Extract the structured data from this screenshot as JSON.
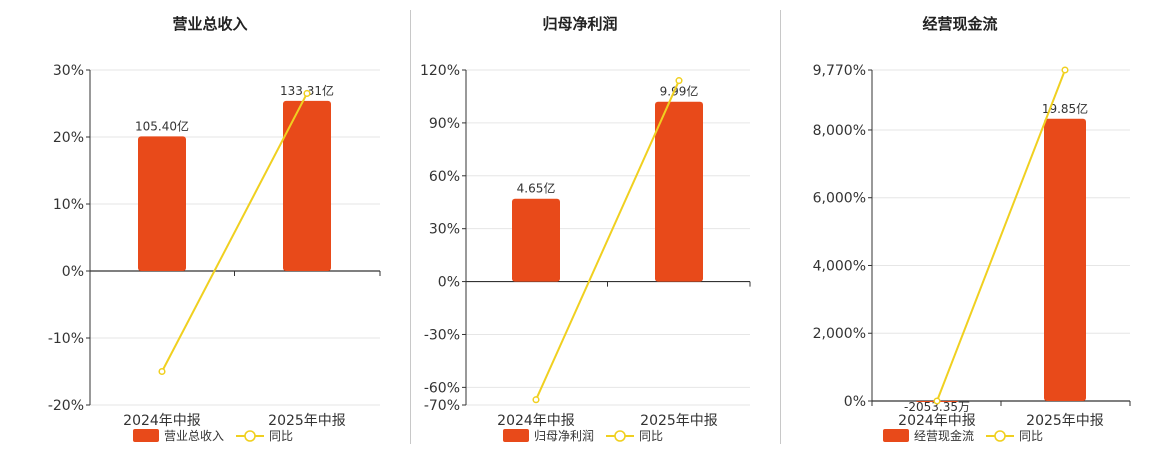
{
  "colors": {
    "bar": "#e84a1a",
    "line": "#f0d020",
    "axis": "#333333",
    "grid": "#e6e6e6",
    "text": "#333333"
  },
  "chart_data": [
    {
      "type": "bar",
      "title": "营业总收入",
      "categories": [
        "2024年中报",
        "2025年中报"
      ],
      "series": [
        {
          "name": "营业总收入",
          "type": "bar",
          "values": [
            20.1,
            25.4
          ],
          "labels": [
            "105.40亿",
            "133.31亿"
          ]
        },
        {
          "name": "同比",
          "type": "line",
          "values": [
            -15.0,
            26.5
          ]
        }
      ],
      "yticks": [
        30,
        20,
        10,
        0,
        -10,
        -20
      ],
      "ytick_labels": [
        "30%",
        "20%",
        "10%",
        "0%",
        "-10%",
        "-20%"
      ],
      "ylim": [
        -20,
        30
      ],
      "grid": true,
      "legend": "bottom"
    },
    {
      "type": "bar",
      "title": "归母净利润",
      "categories": [
        "2024年中报",
        "2025年中报"
      ],
      "series": [
        {
          "name": "归母净利润",
          "type": "bar",
          "values": [
            47.0,
            102.0
          ],
          "labels": [
            "4.65亿",
            "9.99亿"
          ]
        },
        {
          "name": "同比",
          "type": "line",
          "values": [
            -67.0,
            114.0
          ]
        }
      ],
      "yticks": [
        120,
        90,
        60,
        30,
        0,
        -30,
        -60,
        -70
      ],
      "ytick_labels": [
        "120%",
        "90%",
        "60%",
        "30%",
        "0%",
        "-30%",
        "-60%",
        "-70%"
      ],
      "ylim": [
        -70,
        120
      ],
      "grid": true,
      "legend": "bottom"
    },
    {
      "type": "bar",
      "title": "经营现金流",
      "categories": [
        "2024年中报",
        "2025年中报"
      ],
      "series": [
        {
          "name": "经营现金流",
          "type": "bar",
          "values": [
            -10,
            8330
          ],
          "labels": [
            "-2053.35万",
            "19.85亿"
          ]
        },
        {
          "name": "同比",
          "type": "line",
          "values": [
            0,
            9770
          ]
        }
      ],
      "yticks": [
        9770,
        8000,
        6000,
        4000,
        2000,
        0
      ],
      "ytick_labels": [
        "9,770%",
        "8,000%",
        "6,000%",
        "4,000%",
        "2,000%",
        "0%"
      ],
      "ylim": [
        0,
        9770
      ],
      "grid": true,
      "legend": "bottom"
    }
  ]
}
